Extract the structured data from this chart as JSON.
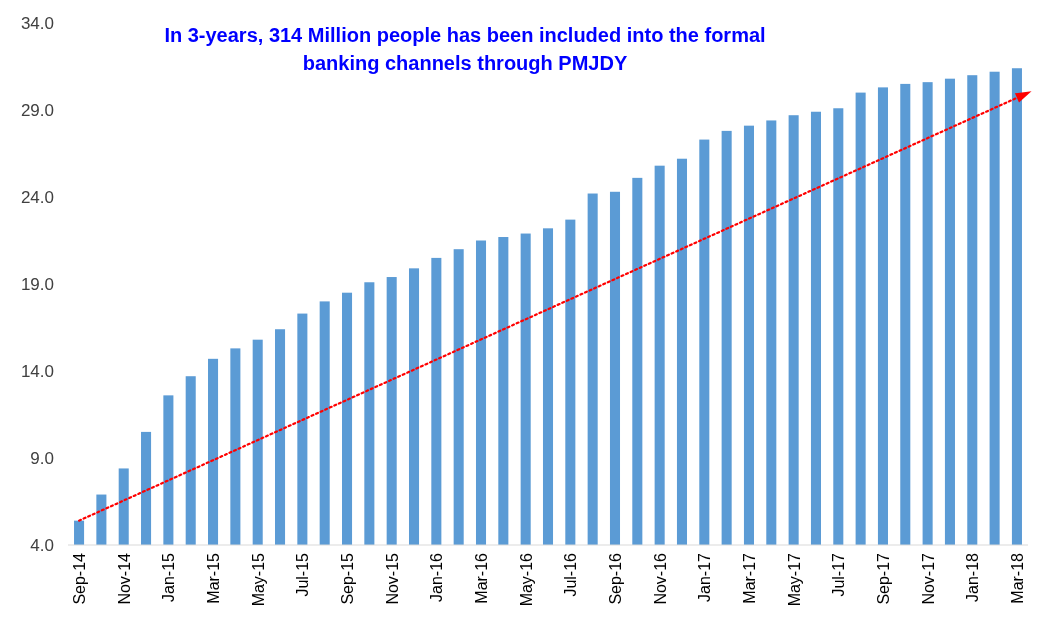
{
  "chart_data": {
    "type": "bar",
    "title": "In 3-years, 314 Million people has been included into the formal banking channels through PMJDY",
    "categories": [
      "Sep-14",
      null,
      "Nov-14",
      null,
      "Jan-15",
      null,
      "Mar-15",
      null,
      "May-15",
      null,
      "Jul-15",
      null,
      "Sep-15",
      null,
      "Nov-15",
      null,
      "Jan-16",
      null,
      "Mar-16",
      null,
      "May-16",
      null,
      "Jul-16",
      null,
      "Sep-16",
      null,
      "Nov-16",
      null,
      "Jan-17",
      null,
      "Mar-17",
      null,
      "May-17",
      null,
      "Jul-17",
      null,
      "Sep-17",
      null,
      "Nov-17",
      null,
      "Jan-18",
      null,
      "Mar-18"
    ],
    "series": [
      {
        "color": "#5b9bd5",
        "values": [
          5.4,
          6.9,
          8.4,
          10.5,
          12.6,
          13.7,
          14.7,
          15.3,
          15.8,
          16.4,
          17.3,
          18.0,
          18.5,
          19.1,
          19.4,
          19.9,
          20.5,
          21.0,
          21.5,
          21.7,
          21.9,
          22.2,
          22.7,
          24.2,
          24.3,
          25.1,
          25.8,
          26.2,
          27.3,
          27.8,
          28.1,
          28.4,
          28.7,
          28.9,
          29.1,
          30.0,
          30.3,
          30.5,
          30.6,
          30.8,
          31.0,
          31.2,
          31.4
        ]
      },
      {
        "type": "line",
        "color": "#ff0000",
        "line_style": "dotted",
        "x": [
          "Sep-14",
          "Mar-18"
        ],
        "values": [
          5.4,
          29.7
        ]
      }
    ],
    "ylim": [
      4,
      34
    ],
    "yticks": [
      {
        "value": 4,
        "label": "4.0"
      },
      {
        "value": 9,
        "label": "9.0"
      },
      {
        "value": 14,
        "label": "14.0"
      },
      {
        "value": 19,
        "label": "19.0"
      },
      {
        "value": 24,
        "label": "24.0"
      },
      {
        "value": 29,
        "label": "29.0"
      },
      {
        "value": 34,
        "label": "34.0"
      }
    ],
    "grid": false
  }
}
